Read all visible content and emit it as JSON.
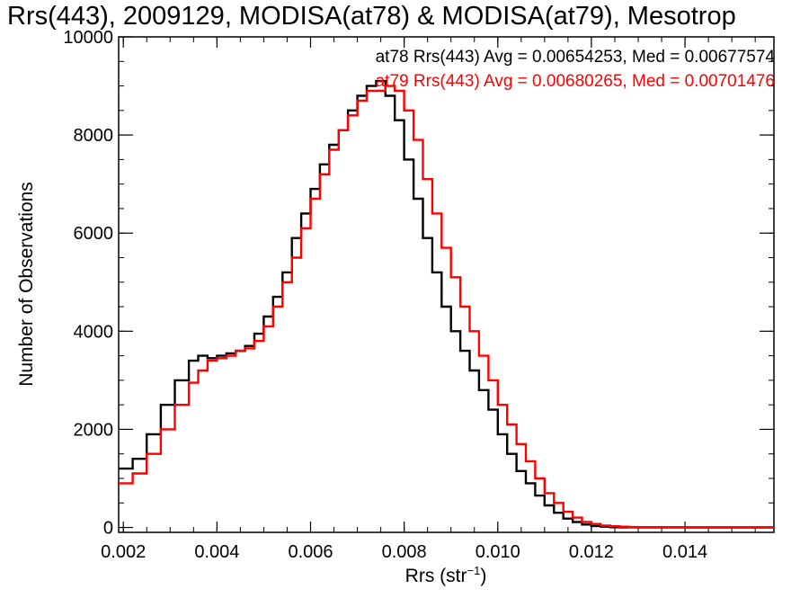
{
  "chart_data": {
    "type": "line",
    "title": "Rrs(443), 2009129, MODISA(at78) & MODISA(at79), Mesotrop",
    "xlabel": "Rrs (str",
    "xlabel_exponent": "−1",
    "xlabel_close": ")",
    "ylabel": "Number of Observations",
    "xlim": [
      0.0019,
      0.0159
    ],
    "ylim": [
      -100,
      10000
    ],
    "x_ticks": [
      "0.002",
      "0.004",
      "0.006",
      "0.008",
      "0.010",
      "0.012",
      "0.014"
    ],
    "y_ticks": [
      "0",
      "2000",
      "4000",
      "6000",
      "8000",
      "10000"
    ],
    "x_tick_values": [
      0.002,
      0.004,
      0.006,
      0.008,
      0.01,
      0.012,
      0.014
    ],
    "y_tick_values": [
      0,
      2000,
      4000,
      6000,
      8000,
      10000
    ],
    "x_minor_step": 0.0005,
    "y_minor_step": 500,
    "draw_style": "steps",
    "grid": false,
    "series": [
      {
        "name": "at78",
        "color": "#000000",
        "label": "at78 Rrs(443) Avg = 0.00654253, Med = 0.00677574",
        "x": [
          0.0019,
          0.0022,
          0.0025,
          0.0028,
          0.0031,
          0.0034,
          0.0036,
          0.0038,
          0.004,
          0.0042,
          0.0044,
          0.0046,
          0.0048,
          0.005,
          0.0052,
          0.0054,
          0.0056,
          0.0058,
          0.006,
          0.0062,
          0.0064,
          0.0066,
          0.0068,
          0.007,
          0.0072,
          0.0074,
          0.0076,
          0.0078,
          0.008,
          0.0082,
          0.0084,
          0.0086,
          0.0088,
          0.009,
          0.0092,
          0.0094,
          0.0096,
          0.0098,
          0.01,
          0.0102,
          0.0104,
          0.0106,
          0.0108,
          0.011,
          0.0112,
          0.0114,
          0.0116,
          0.0118,
          0.012,
          0.0122,
          0.0124,
          0.0126,
          0.013,
          0.014,
          0.015,
          0.0159
        ],
        "y": [
          1200,
          1400,
          1900,
          2500,
          3000,
          3400,
          3500,
          3450,
          3500,
          3550,
          3600,
          3700,
          3950,
          4300,
          4700,
          5200,
          5900,
          6400,
          6900,
          7400,
          7800,
          8100,
          8500,
          8800,
          9000,
          9100,
          8800,
          8300,
          7500,
          6700,
          5900,
          5200,
          4500,
          4000,
          3600,
          3200,
          2800,
          2400,
          1900,
          1500,
          1150,
          900,
          650,
          450,
          300,
          180,
          110,
          60,
          30,
          15,
          5,
          2,
          0,
          0,
          0,
          0
        ]
      },
      {
        "name": "at79",
        "color": "#ff0000",
        "label": "at79 Rrs(443) Avg = 0.00680265, Med = 0.00701476",
        "x": [
          0.0019,
          0.0022,
          0.0025,
          0.0028,
          0.0031,
          0.0034,
          0.0036,
          0.0038,
          0.004,
          0.0042,
          0.0044,
          0.0046,
          0.0048,
          0.005,
          0.0052,
          0.0054,
          0.0056,
          0.0058,
          0.006,
          0.0062,
          0.0064,
          0.0066,
          0.0068,
          0.007,
          0.0072,
          0.0074,
          0.0076,
          0.0078,
          0.008,
          0.0082,
          0.0084,
          0.0086,
          0.0088,
          0.009,
          0.0092,
          0.0094,
          0.0096,
          0.0098,
          0.01,
          0.0102,
          0.0104,
          0.0106,
          0.0108,
          0.011,
          0.0112,
          0.0114,
          0.0116,
          0.0118,
          0.012,
          0.0122,
          0.0124,
          0.0126,
          0.0128,
          0.013,
          0.014,
          0.015,
          0.0159
        ],
        "y": [
          900,
          1100,
          1500,
          2000,
          2500,
          2950,
          3200,
          3400,
          3450,
          3500,
          3600,
          3650,
          3800,
          4100,
          4500,
          5000,
          5500,
          6100,
          6700,
          7200,
          7700,
          8100,
          8400,
          8700,
          8900,
          8900,
          9000,
          8900,
          8500,
          7900,
          7100,
          6400,
          5700,
          5100,
          4500,
          4000,
          3500,
          3000,
          2500,
          2100,
          1700,
          1350,
          1000,
          700,
          500,
          320,
          200,
          110,
          70,
          40,
          25,
          15,
          8,
          5,
          0,
          0,
          0
        ]
      }
    ]
  }
}
